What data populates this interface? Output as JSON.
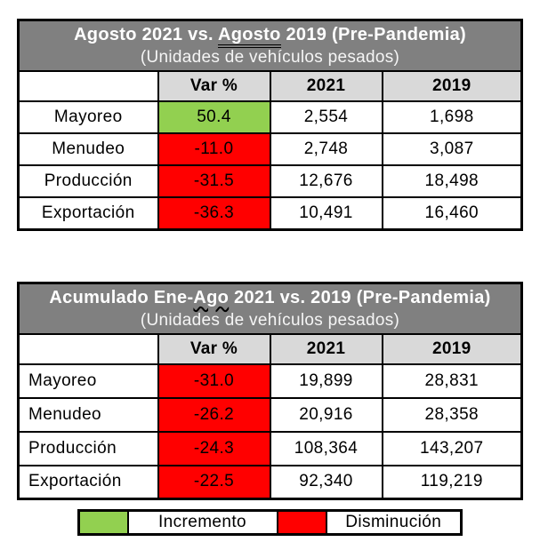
{
  "colors": {
    "green": "#92d050",
    "red": "#ff0000",
    "title_bar": "#808080",
    "header_bg": "#d9d9d9",
    "border": "#000000",
    "title_text": "#ffffff"
  },
  "chart_data": [
    {
      "type": "table",
      "title": "Agosto 2021 vs. Agosto 2019 (Pre-Pandemia)",
      "title_prefix": "Agosto 2021 vs. ",
      "title_underlined": "Agosto",
      "title_suffix": " 2019 (Pre-Pandemia)",
      "subtitle": "(Unidades de vehículos pesados)",
      "columns": [
        "",
        "Var %",
        "2021",
        "2019"
      ],
      "rows": [
        {
          "label": "Mayoreo",
          "var_pct": "50.4",
          "direction": "increase",
          "y2021": "2,554",
          "y2019": "1,698"
        },
        {
          "label": "Menudeo",
          "var_pct": "-11.0",
          "direction": "decrease",
          "y2021": "2,748",
          "y2019": "3,087"
        },
        {
          "label": "Producción",
          "var_pct": "-31.5",
          "direction": "decrease",
          "y2021": "12,676",
          "y2019": "18,498"
        },
        {
          "label": "Exportación",
          "var_pct": "-36.3",
          "direction": "decrease",
          "y2021": "10,491",
          "y2019": "16,460"
        }
      ],
      "numeric": {
        "var_pct": [
          50.4,
          -11.0,
          -31.5,
          -36.3
        ],
        "y2021": [
          2554,
          2748,
          12676,
          10491
        ],
        "y2019": [
          1698,
          3087,
          18498,
          16460
        ]
      }
    },
    {
      "type": "table",
      "title": "Acumulado Ene-Ago 2021 vs. 2019 (Pre-Pandemia)",
      "title_prefix": "Acumulado Ene-",
      "title_underlined": "Ago",
      "title_suffix": " 2021 vs. 2019 (Pre-Pandemia)",
      "subtitle": "(Unidades de vehículos pesados)",
      "columns": [
        "",
        "Var %",
        "2021",
        "2019"
      ],
      "rows": [
        {
          "label": "Mayoreo",
          "var_pct": "-31.0",
          "direction": "decrease",
          "y2021": "19,899",
          "y2019": "28,831"
        },
        {
          "label": "Menudeo",
          "var_pct": "-26.2",
          "direction": "decrease",
          "y2021": "20,916",
          "y2019": "28,358"
        },
        {
          "label": "Producción",
          "var_pct": "-24.3",
          "direction": "decrease",
          "y2021": "108,364",
          "y2019": "143,207"
        },
        {
          "label": "Exportación",
          "var_pct": "-22.5",
          "direction": "decrease",
          "y2021": "92,340",
          "y2019": "119,219"
        }
      ],
      "numeric": {
        "var_pct": [
          -31.0,
          -26.2,
          -24.3,
          -22.5
        ],
        "y2021": [
          19899,
          20916,
          108364,
          92340
        ],
        "y2019": [
          28831,
          28358,
          143207,
          119219
        ]
      }
    }
  ],
  "legend": {
    "items": [
      {
        "label": "Incremento",
        "meaning": "increase",
        "color_key": "green"
      },
      {
        "label": "Disminución",
        "meaning": "decrease",
        "color_key": "red"
      }
    ]
  }
}
